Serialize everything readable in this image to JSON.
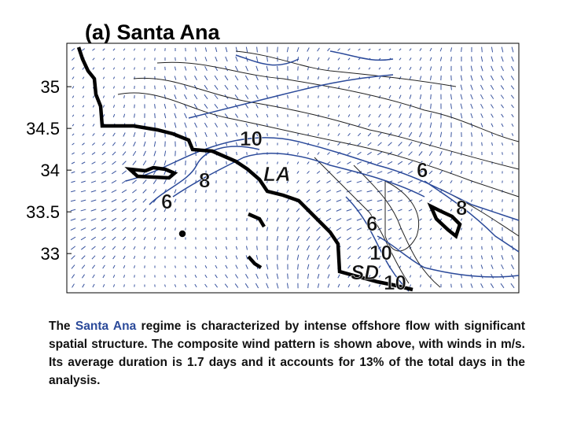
{
  "map": {
    "title": "(a) Santa Ana",
    "ylim": [
      32.53,
      35.52
    ],
    "yticks": [
      35,
      34.5,
      34,
      33.5,
      33
    ],
    "labels": [
      "10",
      "8",
      "6",
      "LA",
      "6",
      "6",
      "8",
      "10",
      "SD",
      "10"
    ]
  },
  "caption": {
    "parts": [
      "The ",
      "Santa Ana",
      " regime is characterized by intense offshore flow with significant spatial structure. The composite wind pattern is shown above, with winds in m/s.  Its average duration is 1.7 days and it accounts for 13% of the total days in the analysis."
    ]
  }
}
